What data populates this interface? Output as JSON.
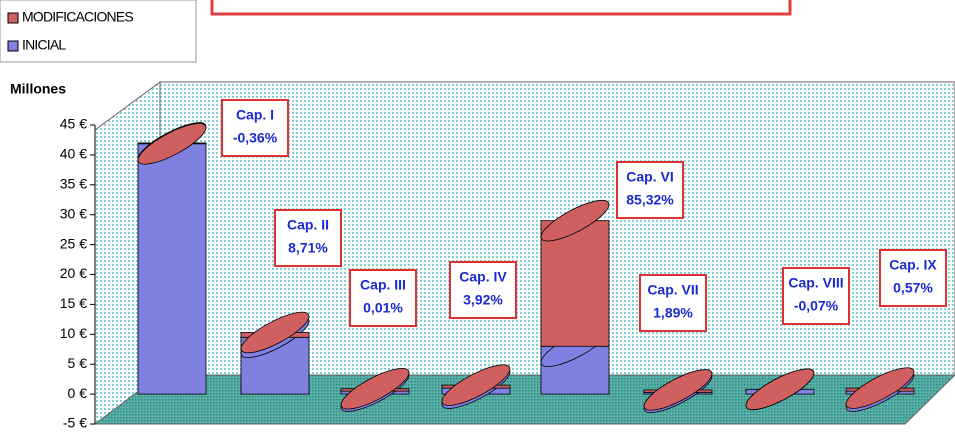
{
  "chart_data": {
    "type": "bar3d_stacked",
    "y_label": "Millones",
    "categories": [
      "Cap. I",
      "Cap. II",
      "Cap. III",
      "Cap. IV",
      "Cap. VI",
      "Cap. VII",
      "Cap. VIII",
      "Cap. IX"
    ],
    "series": [
      {
        "name": "INICIAL",
        "color": "#8080e0",
        "values": [
          42,
          9.5,
          0.5,
          1,
          8,
          0.3,
          0.8,
          0.5
        ]
      },
      {
        "name": "MODIFICACIONES",
        "color": "#d06060",
        "values": [
          -0.15,
          0.8,
          0.4,
          0.5,
          21,
          0.4,
          0,
          0.5
        ]
      }
    ],
    "annotations": [
      [
        "Cap. I",
        "-0,36%"
      ],
      [
        "Cap. II",
        "8,71%"
      ],
      [
        "Cap. III",
        "0,01%"
      ],
      [
        "Cap. IV",
        "3,92%"
      ],
      [
        "Cap. VI",
        "85,32%"
      ],
      [
        "Cap. VII",
        "1,89%"
      ],
      [
        "Cap. VIII",
        "-0,07%"
      ],
      [
        "Cap. IX",
        "0,57%"
      ]
    ],
    "ylim": [
      -5,
      45
    ],
    "yticks": [
      {
        "value": -5,
        "label": "-5 €"
      },
      {
        "value": 0,
        "label": "0 €"
      },
      {
        "value": 5,
        "label": "5 €"
      },
      {
        "value": 10,
        "label": "10 €"
      },
      {
        "value": 15,
        "label": "15 €"
      },
      {
        "value": 20,
        "label": "20 €"
      },
      {
        "value": 25,
        "label": "25 €"
      },
      {
        "value": 30,
        "label": "30 €"
      },
      {
        "value": 35,
        "label": "35 €"
      },
      {
        "value": 40,
        "label": "40 €"
      },
      {
        "value": 45,
        "label": "45 €"
      }
    ]
  }
}
